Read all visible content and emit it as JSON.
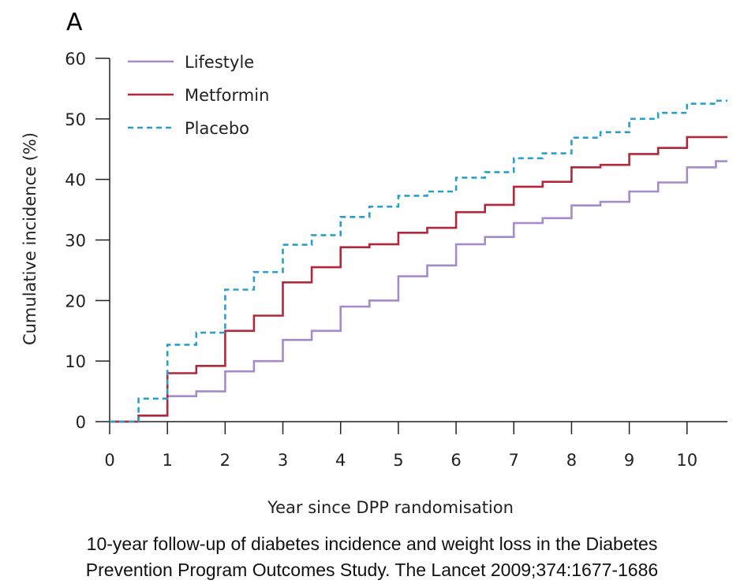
{
  "panel_label": "A",
  "caption": {
    "line1": "10-year follow-up of diabetes incidence and weight loss in the Diabetes",
    "line2": "Prevention Program Outcomes Study. The Lancet 2009;374:1677-1686"
  },
  "chart_data": {
    "type": "line",
    "step": true,
    "title": "",
    "xlabel": "Year since DPP randomisation",
    "ylabel": "Cumulative incidence (%)",
    "xlim": [
      0,
      10.7
    ],
    "ylim": [
      0,
      60
    ],
    "x_ticks": [
      0,
      1,
      2,
      3,
      4,
      5,
      6,
      7,
      8,
      9,
      10
    ],
    "y_ticks": [
      0,
      10,
      20,
      30,
      40,
      50,
      60
    ],
    "grid": false,
    "legend_position": "top-left",
    "series": [
      {
        "name": "Lifestyle",
        "color": "#a58bc9",
        "dash": "solid",
        "points": [
          [
            0,
            0
          ],
          [
            0.5,
            0
          ],
          [
            0.5,
            1
          ],
          [
            1,
            1
          ],
          [
            1,
            4.2
          ],
          [
            1.5,
            4.2
          ],
          [
            1.5,
            5
          ],
          [
            2,
            5
          ],
          [
            2,
            8.3
          ],
          [
            2.5,
            8.3
          ],
          [
            2.5,
            10
          ],
          [
            3,
            10
          ],
          [
            3,
            13.5
          ],
          [
            3.5,
            13.5
          ],
          [
            3.5,
            15
          ],
          [
            4,
            15
          ],
          [
            4,
            19
          ],
          [
            4.5,
            19
          ],
          [
            4.5,
            20
          ],
          [
            5,
            20
          ],
          [
            5,
            24
          ],
          [
            5.5,
            24
          ],
          [
            5.5,
            25.8
          ],
          [
            6,
            25.8
          ],
          [
            6,
            29.3
          ],
          [
            6.5,
            29.3
          ],
          [
            6.5,
            30.5
          ],
          [
            7,
            30.5
          ],
          [
            7,
            32.8
          ],
          [
            7.5,
            32.8
          ],
          [
            7.5,
            33.6
          ],
          [
            8,
            33.6
          ],
          [
            8,
            35.7
          ],
          [
            8.5,
            35.7
          ],
          [
            8.5,
            36.3
          ],
          [
            9,
            36.3
          ],
          [
            9,
            38
          ],
          [
            9.5,
            38
          ],
          [
            9.5,
            39.5
          ],
          [
            10,
            39.5
          ],
          [
            10,
            42
          ],
          [
            10.5,
            42
          ],
          [
            10.5,
            43
          ],
          [
            10.7,
            43
          ]
        ]
      },
      {
        "name": "Metformin",
        "color": "#b3273a",
        "dash": "solid",
        "points": [
          [
            0,
            0
          ],
          [
            0.5,
            0
          ],
          [
            0.5,
            1
          ],
          [
            1,
            1
          ],
          [
            1,
            8
          ],
          [
            1.5,
            8
          ],
          [
            1.5,
            9.2
          ],
          [
            2,
            9.2
          ],
          [
            2,
            15
          ],
          [
            2.5,
            15
          ],
          [
            2.5,
            17.5
          ],
          [
            3,
            17.5
          ],
          [
            3,
            23
          ],
          [
            3.5,
            23
          ],
          [
            3.5,
            25.5
          ],
          [
            4,
            25.5
          ],
          [
            4,
            28.8
          ],
          [
            4.5,
            28.8
          ],
          [
            4.5,
            29.3
          ],
          [
            5,
            29.3
          ],
          [
            5,
            31.2
          ],
          [
            5.5,
            31.2
          ],
          [
            5.5,
            32
          ],
          [
            6,
            32
          ],
          [
            6,
            34.6
          ],
          [
            6.5,
            34.6
          ],
          [
            6.5,
            35.8
          ],
          [
            7,
            35.8
          ],
          [
            7,
            38.8
          ],
          [
            7.5,
            38.8
          ],
          [
            7.5,
            39.6
          ],
          [
            8,
            39.6
          ],
          [
            8,
            42
          ],
          [
            8.5,
            42
          ],
          [
            8.5,
            42.4
          ],
          [
            9,
            42.4
          ],
          [
            9,
            44.2
          ],
          [
            9.5,
            44.2
          ],
          [
            9.5,
            45.2
          ],
          [
            10,
            45.2
          ],
          [
            10,
            47
          ],
          [
            10.7,
            47
          ]
        ]
      },
      {
        "name": "Placebo",
        "color": "#2aa0c8",
        "dash": "dashed",
        "points": [
          [
            0,
            0
          ],
          [
            0.5,
            0
          ],
          [
            0.5,
            3.8
          ],
          [
            1,
            3.8
          ],
          [
            1,
            12.7
          ],
          [
            1.5,
            12.7
          ],
          [
            1.5,
            14.7
          ],
          [
            2,
            14.7
          ],
          [
            2,
            21.8
          ],
          [
            2.5,
            21.8
          ],
          [
            2.5,
            24.7
          ],
          [
            3,
            24.7
          ],
          [
            3,
            29.2
          ],
          [
            3.5,
            29.2
          ],
          [
            3.5,
            30.8
          ],
          [
            4,
            30.8
          ],
          [
            4,
            33.8
          ],
          [
            4.5,
            33.8
          ],
          [
            4.5,
            35.5
          ],
          [
            5,
            35.5
          ],
          [
            5,
            37.3
          ],
          [
            5.5,
            37.3
          ],
          [
            5.5,
            38
          ],
          [
            6,
            38
          ],
          [
            6,
            40.3
          ],
          [
            6.5,
            40.3
          ],
          [
            6.5,
            41.2
          ],
          [
            7,
            41.2
          ],
          [
            7,
            43.5
          ],
          [
            7.5,
            43.5
          ],
          [
            7.5,
            44.3
          ],
          [
            8,
            44.3
          ],
          [
            8,
            46.9
          ],
          [
            8.5,
            46.9
          ],
          [
            8.5,
            47.8
          ],
          [
            9,
            47.8
          ],
          [
            9,
            50
          ],
          [
            9.5,
            50
          ],
          [
            9.5,
            51
          ],
          [
            10,
            51
          ],
          [
            10,
            52.5
          ],
          [
            10.5,
            52.5
          ],
          [
            10.5,
            53
          ],
          [
            10.7,
            53
          ]
        ]
      }
    ]
  }
}
